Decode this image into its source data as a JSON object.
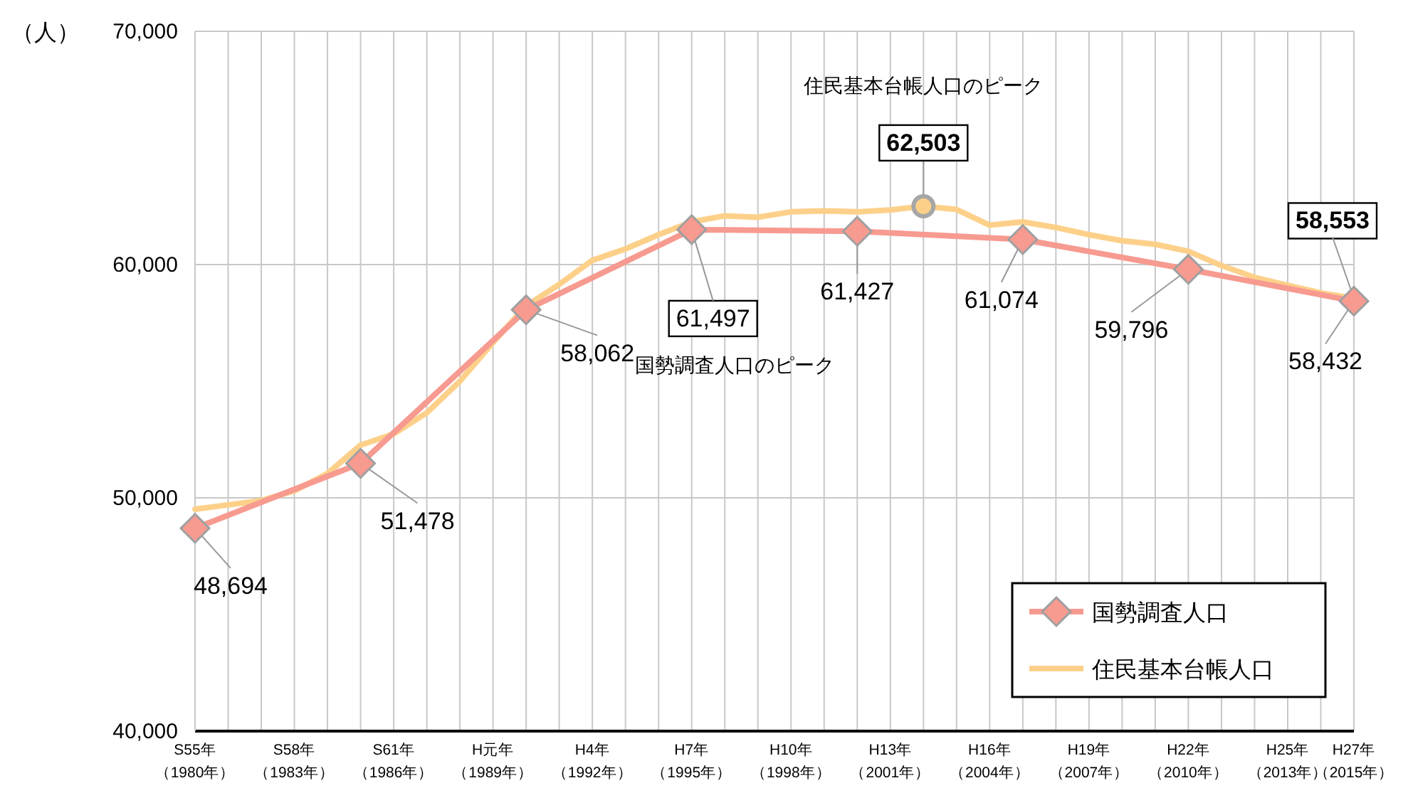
{
  "chart_data": {
    "type": "line",
    "ylabel": "（人）",
    "categories": [
      "S55年（1980年）",
      null,
      null,
      "S58年（1983年）",
      null,
      null,
      "S61年（1986年）",
      null,
      null,
      "H元年（1989年）",
      null,
      null,
      "H4年（1992年）",
      null,
      null,
      "H7年（1995年）",
      null,
      null,
      "H10年（1998年）",
      null,
      null,
      "H13年（2001年）",
      null,
      null,
      "H16年（2004年）",
      null,
      null,
      "H19年（2007年）",
      null,
      null,
      "H22年（2010年）",
      null,
      null,
      "H25年（2013年）",
      null,
      "H27年（2015年）"
    ],
    "ylim": [
      40000,
      70000
    ],
    "yticks": [
      {
        "value": 40000,
        "label": "40,000"
      },
      {
        "value": 50000,
        "label": "50,000"
      },
      {
        "value": 60000,
        "label": "60,000"
      },
      {
        "value": 70000,
        "label": "70,000"
      }
    ],
    "grid": true,
    "legend": "bottom right",
    "line_style": "solid",
    "series": [
      {
        "name": "住民基本台帳人口",
        "color": "#fdd08a",
        "marker": "none",
        "values": [
          49510,
          49700,
          49880,
          50300,
          51040,
          52260,
          52740,
          53650,
          55000,
          56660,
          58230,
          59150,
          60180,
          60670,
          61280,
          61830,
          62090,
          62030,
          62260,
          62300,
          62260,
          62340,
          62503,
          62360,
          61690,
          61830,
          61590,
          61280,
          61020,
          60870,
          60570,
          59960,
          59450,
          59110,
          58780,
          58553
        ],
        "value_labels": [
          null,
          null,
          null,
          null,
          null,
          null,
          null,
          null,
          null,
          null,
          null,
          null,
          null,
          null,
          null,
          null,
          null,
          null,
          null,
          null,
          null,
          null,
          "62,503",
          null,
          null,
          null,
          null,
          null,
          null,
          null,
          null,
          null,
          null,
          null,
          null,
          "58,553"
        ]
      },
      {
        "name": "国勢調査人口",
        "color": "#f79a90",
        "marker": "diamond",
        "values": [
          48694,
          null,
          null,
          null,
          null,
          51478,
          null,
          null,
          null,
          null,
          58062,
          null,
          null,
          null,
          null,
          61497,
          null,
          null,
          null,
          null,
          61427,
          null,
          null,
          null,
          null,
          61074,
          null,
          null,
          null,
          null,
          59796,
          null,
          null,
          null,
          null,
          58432
        ],
        "value_labels": [
          "48,694",
          null,
          null,
          null,
          null,
          "51,478",
          null,
          null,
          null,
          null,
          "58,062",
          null,
          null,
          null,
          null,
          "61,497",
          null,
          null,
          null,
          null,
          "61,427",
          null,
          null,
          null,
          null,
          "61,074",
          null,
          null,
          null,
          null,
          "59,796",
          null,
          null,
          null,
          null,
          "58,432"
        ]
      },
      {
        "type": "scatter",
        "color": "#a6a6a6",
        "marker": "circle",
        "values": [
          null,
          null,
          null,
          null,
          null,
          null,
          null,
          null,
          null,
          null,
          null,
          null,
          null,
          null,
          null,
          null,
          null,
          null,
          null,
          null,
          null,
          null,
          62500,
          null,
          null,
          null,
          null,
          null,
          null,
          null,
          null,
          null,
          null,
          null,
          null,
          null
        ]
      }
    ],
    "annotations": [
      "住民基本台帳人口のピーク",
      "国勢調査人口のピーク"
    ]
  }
}
